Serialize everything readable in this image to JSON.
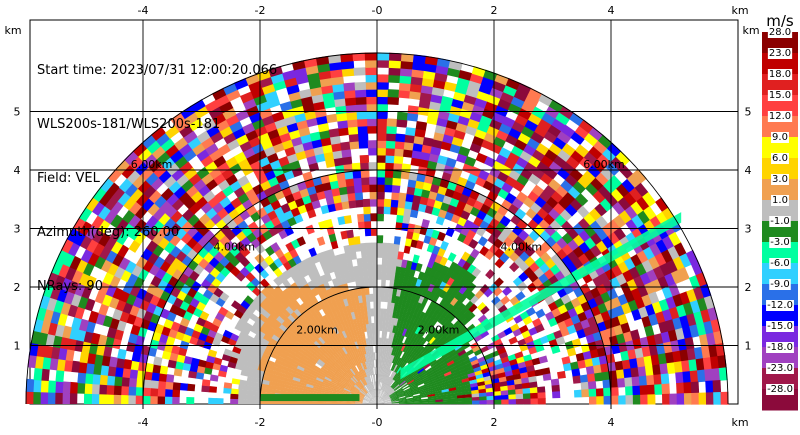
{
  "chart_data": {
    "type": "heatmap",
    "plot_kind": "radar PPI sector scan (Doppler lidar)",
    "header": {
      "start_time": "Start time: 2023/07/31 12:00:20.066",
      "instrument": "WLS200s-181/WLS200s-181",
      "field": "Field: VEL",
      "azimuth": "Azimuth(deg): 260.00",
      "nrays": "NRays: 90"
    },
    "x_unit": "km",
    "y_unit": "km",
    "xlim": [
      -6,
      6
    ],
    "ylim": [
      0,
      5.8
    ],
    "x_ticks": [
      -4,
      -2,
      0,
      2,
      4
    ],
    "x_tick_labels": [
      "-4",
      "-2",
      "-0",
      "2",
      "4"
    ],
    "y_ticks": [
      1,
      2,
      3,
      4,
      5
    ],
    "y_tick_labels": [
      "1",
      "2",
      "3",
      "4",
      "5"
    ],
    "grid": true,
    "range_rings_km": [
      2,
      4,
      6
    ],
    "range_ring_labels": [
      "2.00km",
      "4.00km",
      "6.00km"
    ],
    "sector_azimuth_deg": [
      -90,
      90
    ],
    "max_range_km": 6,
    "colorbar": {
      "title": "m/s",
      "position": "right",
      "tick_labels": [
        "-28.0",
        "-23.0",
        "-18.0",
        "-15.0",
        "-12.0",
        "-9.0",
        "-6.0",
        "-3.0",
        "-1.0",
        "1.0",
        "3.0",
        "6.0",
        "9.0",
        "12.0",
        "15.0",
        "18.0",
        "23.0",
        "28.0"
      ],
      "colors": [
        "#8b0a3b",
        "#a0184a",
        "#a040c0",
        "#7a28e0",
        "#0000ff",
        "#2a70e8",
        "#30d0ff",
        "#00ffa0",
        "#1f8a1f",
        "#bebebe",
        "#f0a050",
        "#ffd400",
        "#ffff00",
        "#ff7a50",
        "#ff4040",
        "#e02020",
        "#c00000",
        "#8b0000"
      ]
    },
    "regions": [
      {
        "label": "receding (orange, ~+1 to +3 m/s)",
        "x_range": [
          -2.0,
          -0.2
        ],
        "y_range": [
          0.1,
          2.0
        ]
      },
      {
        "label": "near-zero (gray)",
        "x_range": [
          -2.3,
          0.3
        ],
        "y_range": [
          0.0,
          3.0
        ]
      },
      {
        "label": "approaching (green, ~-1 to -3 m/s)",
        "x_range": [
          0.2,
          1.5
        ],
        "y_range": [
          0.1,
          2.5
        ]
      },
      {
        "label": "diagonal jet (aquamarine, ~-6 m/s)",
        "from": [
          0.4,
          0.5
        ],
        "to": [
          5.2,
          3.2
        ]
      },
      {
        "label": "noisy speckle (all colors)",
        "range_km": [
          2.5,
          6.0
        ]
      }
    ]
  }
}
